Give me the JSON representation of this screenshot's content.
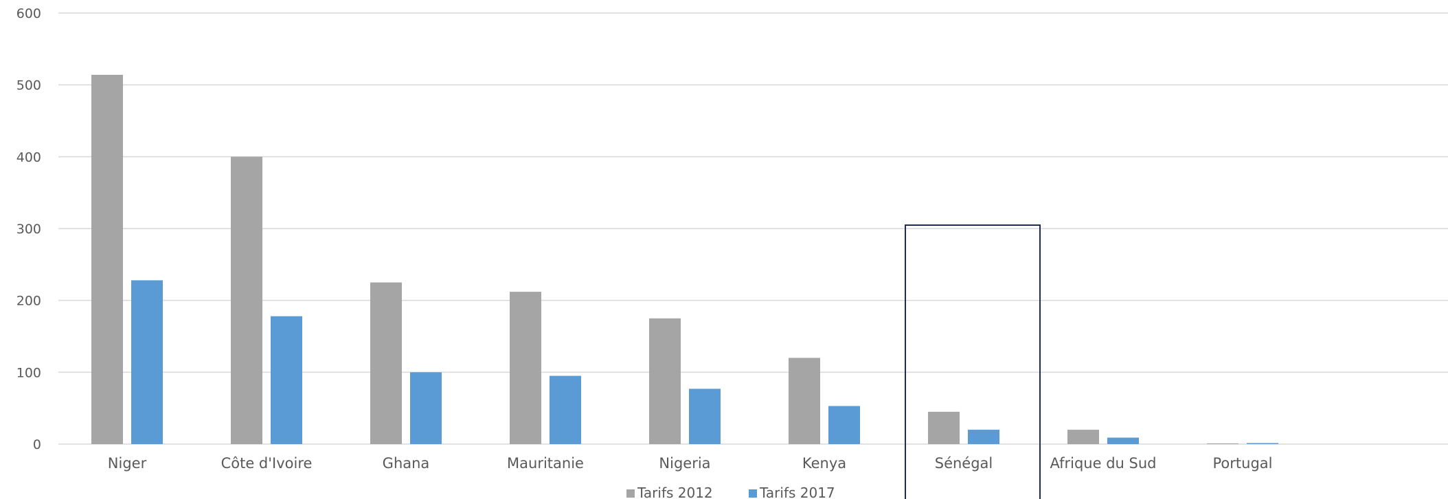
{
  "chart_data": {
    "type": "bar",
    "title": "",
    "xlabel": "",
    "ylabel": "",
    "ylim": [
      0,
      600
    ],
    "yticks": [
      0,
      100,
      200,
      300,
      400,
      500,
      600
    ],
    "grid": true,
    "legend_position": "bottom",
    "categories": [
      "Niger",
      "Côte d'Ivoire",
      "Ghana",
      "Mauritanie",
      "Nigeria",
      "Kenya",
      "Sénégal",
      "Afrique du Sud",
      "Portugal"
    ],
    "series": [
      {
        "name": "Tarifs 2012",
        "color": "#a5a5a5",
        "values": [
          514,
          400,
          225,
          212,
          175,
          120,
          45,
          20,
          1
        ]
      },
      {
        "name": "Tarifs 2017",
        "color": "#5b9bd5",
        "values": [
          228,
          178,
          100,
          95,
          77,
          53,
          20,
          9,
          0
        ]
      }
    ],
    "highlight": {
      "category": "Sénégal",
      "color": "#1f2a5c"
    }
  }
}
